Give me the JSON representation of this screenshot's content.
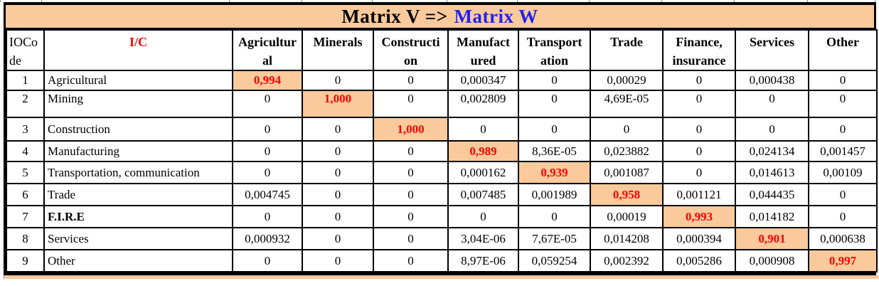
{
  "title": {
    "left": "Matrix V =>",
    "right": "Matrix W"
  },
  "colors": {
    "peach": "#FACA9C",
    "red": "#FF0000",
    "blue": "#2222EF",
    "border": "#000000"
  },
  "table": {
    "corner_header": {
      "label": "IOCode",
      "lines": [
        "IOCo",
        "de"
      ]
    },
    "ic_header": "I/C",
    "column_headers": [
      {
        "label": "Agricultural",
        "lines": [
          "Agricultur",
          "al"
        ]
      },
      {
        "label": "Minerals",
        "lines": [
          "Minerals"
        ]
      },
      {
        "label": "Construction",
        "lines": [
          "Constructi",
          "on"
        ]
      },
      {
        "label": "Manufactured",
        "lines": [
          "Manufact",
          "ured"
        ]
      },
      {
        "label": "Transportation",
        "lines": [
          "Transport",
          "ation"
        ]
      },
      {
        "label": "Trade",
        "lines": [
          "Trade"
        ]
      },
      {
        "label": "Finance, insurance",
        "lines": [
          "Finance,",
          "insurance"
        ]
      },
      {
        "label": "Services",
        "lines": [
          "Services"
        ]
      },
      {
        "label": "Other",
        "lines": [
          "Other"
        ]
      }
    ],
    "rows": [
      {
        "num": "1",
        "label": "Agricultural",
        "bold": false,
        "highlight": 0,
        "values": [
          "0,994",
          "0",
          "0",
          "0,000347",
          "0",
          "0,00029",
          "0",
          "0,000438",
          "0"
        ]
      },
      {
        "num": "2",
        "label": "Mining",
        "bold": false,
        "highlight": 1,
        "values": [
          "0",
          "1,000",
          "0",
          "0,002809",
          "0",
          "4,69E-05",
          "0",
          "0",
          "0"
        ]
      },
      {
        "num": "3",
        "label": "Construction",
        "bold": false,
        "highlight": 2,
        "values": [
          "0",
          "0",
          "1,000",
          "0",
          "0",
          "0",
          "0",
          "0",
          "0"
        ]
      },
      {
        "num": "4",
        "label": "Manufacturing",
        "bold": false,
        "highlight": 3,
        "values": [
          "0",
          "0",
          "0",
          "0,989",
          "8,36E-05",
          "0,023882",
          "0",
          "0,024134",
          "0,001457"
        ]
      },
      {
        "num": "5",
        "label": "Transportation, communication",
        "bold": false,
        "highlight": 4,
        "values": [
          "0",
          "0",
          "0",
          "0,000162",
          "0,939",
          "0,001087",
          "0",
          "0,014613",
          "0,00109"
        ]
      },
      {
        "num": "6",
        "label": "Trade",
        "bold": false,
        "highlight": 5,
        "values": [
          "0,004745",
          "0",
          "0",
          "0,007485",
          "0,001989",
          "0,958",
          "0,001121",
          "0,044435",
          "0"
        ]
      },
      {
        "num": "7",
        "label": "F.I.R.E",
        "bold": true,
        "highlight": 6,
        "values": [
          "0",
          "0",
          "0",
          "0",
          "0",
          "0,00019",
          "0,993",
          "0,014182",
          "0"
        ]
      },
      {
        "num": "8",
        "label": "Services",
        "bold": false,
        "highlight": 7,
        "values": [
          "0,000932",
          "0",
          "0",
          "3,04E-06",
          "7,67E-05",
          "0,014208",
          "0,000394",
          "0,901",
          "0,000638"
        ]
      },
      {
        "num": "9",
        "label": "Other",
        "bold": false,
        "highlight": 8,
        "values": [
          "0",
          "0",
          "0",
          "8,97E-06",
          "0,059254",
          "0,002392",
          "0,005286",
          "0,000908",
          "0,997"
        ]
      }
    ]
  }
}
